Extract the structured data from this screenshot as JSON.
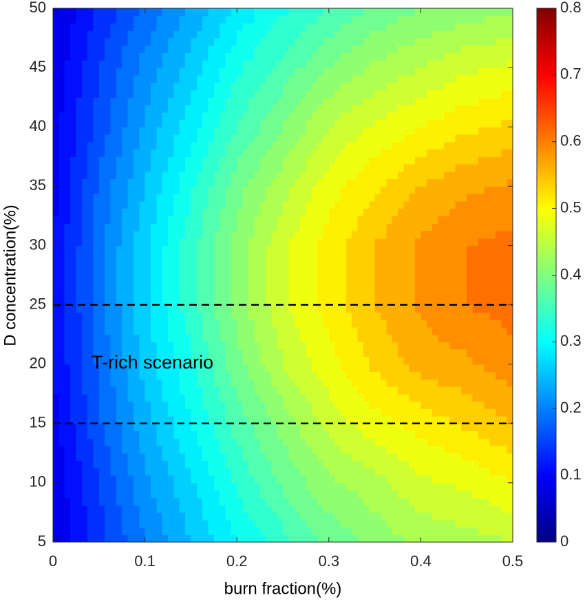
{
  "chart_data": {
    "type": "contour",
    "colormap": "jet",
    "xlabel": "burn fraction(%)",
    "ylabel": "D concentration(%)",
    "annotation": "T-rich scenario",
    "x": [
      0,
      0.05,
      0.1,
      0.15,
      0.2,
      0.25,
      0.3,
      0.35,
      0.4,
      0.45,
      0.5
    ],
    "y": [
      5,
      10,
      15,
      20,
      25,
      30,
      35,
      40,
      45,
      50
    ],
    "z": [
      [
        0.07,
        0.14,
        0.2,
        0.25,
        0.3,
        0.34,
        0.38,
        0.41,
        0.43,
        0.44,
        0.45
      ],
      [
        0.08,
        0.15,
        0.22,
        0.27,
        0.33,
        0.38,
        0.42,
        0.44,
        0.47,
        0.48,
        0.5
      ],
      [
        0.09,
        0.17,
        0.24,
        0.3,
        0.36,
        0.41,
        0.46,
        0.49,
        0.51,
        0.53,
        0.55
      ],
      [
        0.1,
        0.18,
        0.26,
        0.32,
        0.39,
        0.45,
        0.49,
        0.53,
        0.56,
        0.57,
        0.59
      ],
      [
        0.1,
        0.19,
        0.27,
        0.34,
        0.41,
        0.47,
        0.51,
        0.55,
        0.58,
        0.6,
        0.61
      ],
      [
        0.1,
        0.19,
        0.27,
        0.34,
        0.41,
        0.47,
        0.51,
        0.55,
        0.58,
        0.6,
        0.61
      ],
      [
        0.09,
        0.18,
        0.25,
        0.32,
        0.39,
        0.44,
        0.49,
        0.52,
        0.55,
        0.57,
        0.58
      ],
      [
        0.09,
        0.16,
        0.23,
        0.29,
        0.35,
        0.4,
        0.45,
        0.48,
        0.5,
        0.52,
        0.53
      ],
      [
        0.08,
        0.15,
        0.21,
        0.26,
        0.32,
        0.36,
        0.4,
        0.43,
        0.45,
        0.47,
        0.48
      ],
      [
        0.07,
        0.13,
        0.18,
        0.23,
        0.28,
        0.32,
        0.35,
        0.38,
        0.4,
        0.41,
        0.42
      ]
    ],
    "zlim": [
      0,
      0.8
    ],
    "zticks": [
      0,
      0.1,
      0.2,
      0.3,
      0.4,
      0.5,
      0.6,
      0.7,
      0.8
    ],
    "xlim": [
      0,
      0.5
    ],
    "xticks": [
      0,
      0.1,
      0.2,
      0.3,
      0.4,
      0.5
    ],
    "ylim": [
      5,
      50
    ],
    "yticks": [
      5,
      10,
      15,
      20,
      25,
      30,
      35,
      40,
      45,
      50
    ],
    "hlines": [
      15,
      25
    ]
  }
}
